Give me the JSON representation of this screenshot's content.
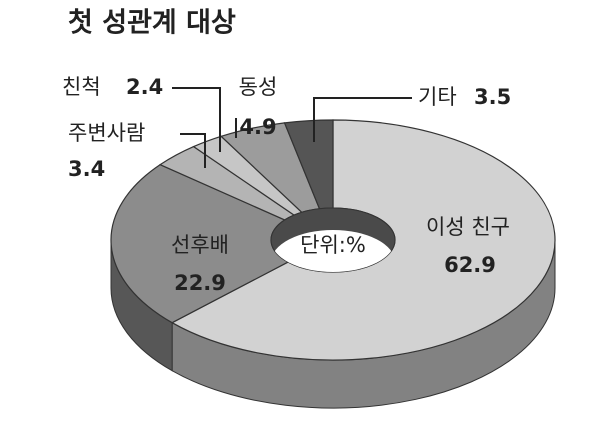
{
  "chart_data": {
    "type": "donut3d",
    "title": "첫 성관계 대상",
    "unit": "단위:%",
    "categories": [
      "이성 친구",
      "선후배",
      "주변사람",
      "친척",
      "동성",
      "기타"
    ],
    "values": [
      62.9,
      22.9,
      3.4,
      2.4,
      4.9,
      3.5
    ],
    "colors": [
      "#d2d2d2",
      "#8c8c8c",
      "#b4b4b4",
      "#c6c6c6",
      "#9c9c9c",
      "#555555"
    ]
  }
}
